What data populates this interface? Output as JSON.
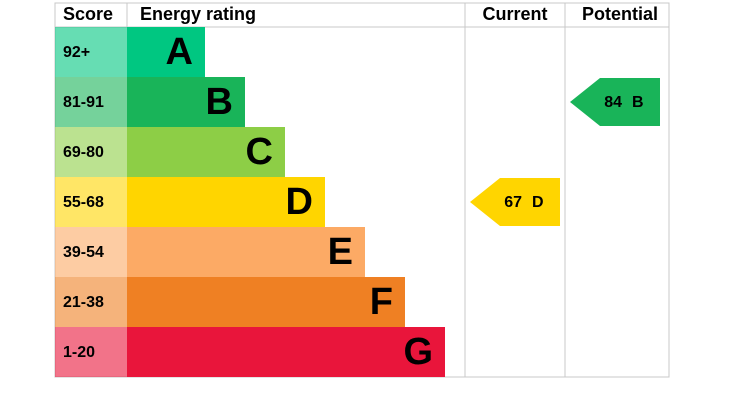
{
  "header": {
    "score": "Score",
    "rating": "Energy rating",
    "current": "Current",
    "potential": "Potential"
  },
  "bands": [
    {
      "score": "92+",
      "letter": "A",
      "color": "#00c781"
    },
    {
      "score": "81-91",
      "letter": "B",
      "color": "#19b459"
    },
    {
      "score": "69-80",
      "letter": "C",
      "color": "#8dce46"
    },
    {
      "score": "55-68",
      "letter": "D",
      "color": "#ffd500"
    },
    {
      "score": "39-54",
      "letter": "E",
      "color": "#fcaa65"
    },
    {
      "score": "21-38",
      "letter": "F",
      "color": "#ef8023"
    },
    {
      "score": "1-20",
      "letter": "G",
      "color": "#e9153b"
    }
  ],
  "current": {
    "value": 67,
    "rating": "D"
  },
  "potential": {
    "value": 84,
    "rating": "B"
  }
}
